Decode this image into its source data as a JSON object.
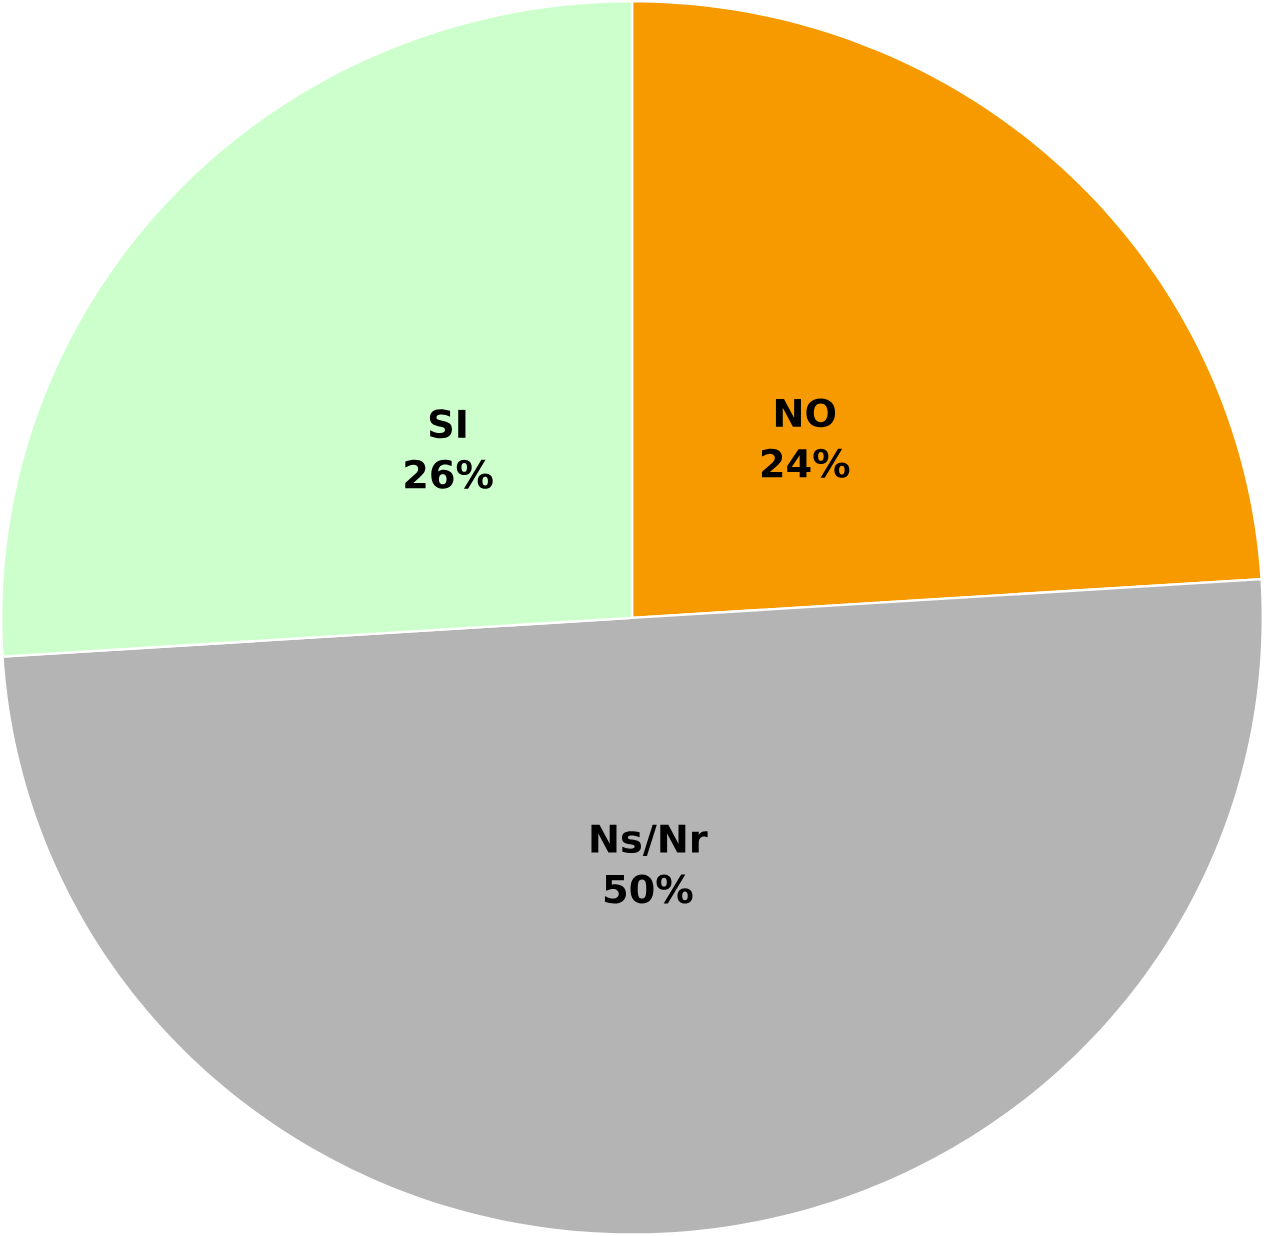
{
  "chart_data": {
    "type": "pie",
    "categories": [
      "NO",
      "Ns/Nr",
      "SI"
    ],
    "values": [
      24,
      50,
      26
    ],
    "colors": [
      "#f79a00",
      "#b4b4b4",
      "#ccffcc"
    ],
    "value_labels": [
      "24%",
      "50%",
      "26%"
    ]
  }
}
